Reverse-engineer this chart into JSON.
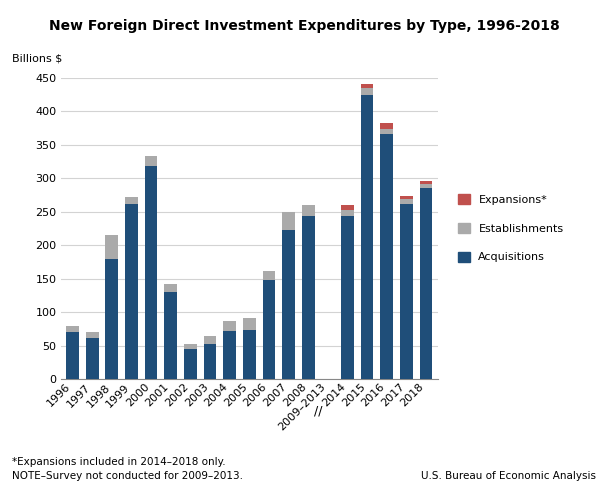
{
  "title": "New Foreign Direct Investment Expenditures by Type, 1996-2018",
  "ylabel": "Billions $",
  "ylim": [
    0,
    450
  ],
  "yticks": [
    0,
    50,
    100,
    150,
    200,
    250,
    300,
    350,
    400,
    450
  ],
  "footnote1": "*Expansions included in 2014–2018 only.",
  "footnote2": "NOTE–Survey not conducted for 2009–2013.",
  "source": "U.S. Bureau of Economic Analysis",
  "categories": [
    "1996",
    "1997",
    "1998",
    "1999",
    "2000",
    "2001",
    "2002",
    "2003",
    "2004",
    "2005",
    "2006",
    "2007",
    "2008",
    "2009–2013",
    "2014",
    "2015",
    "2016",
    "2017",
    "2018"
  ],
  "acquisitions": [
    70,
    62,
    180,
    262,
    318,
    130,
    45,
    52,
    72,
    73,
    148,
    222,
    244,
    0,
    244,
    425,
    366,
    261,
    285
  ],
  "establishments": [
    10,
    8,
    35,
    10,
    15,
    12,
    8,
    12,
    14,
    18,
    14,
    28,
    16,
    0,
    8,
    10,
    8,
    8,
    6
  ],
  "expansions": [
    0,
    0,
    0,
    0,
    0,
    0,
    0,
    0,
    0,
    0,
    0,
    0,
    0,
    0,
    8,
    5,
    8,
    4,
    5
  ],
  "color_acquisitions": "#1F4E79",
  "color_establishments": "#AAAAAA",
  "color_expansions": "#C0504D",
  "legend_labels": [
    "Expansions*",
    "Establishments",
    "Acquisitions"
  ],
  "legend_colors": [
    "#C0504D",
    "#AAAAAA",
    "#1F4E79"
  ]
}
